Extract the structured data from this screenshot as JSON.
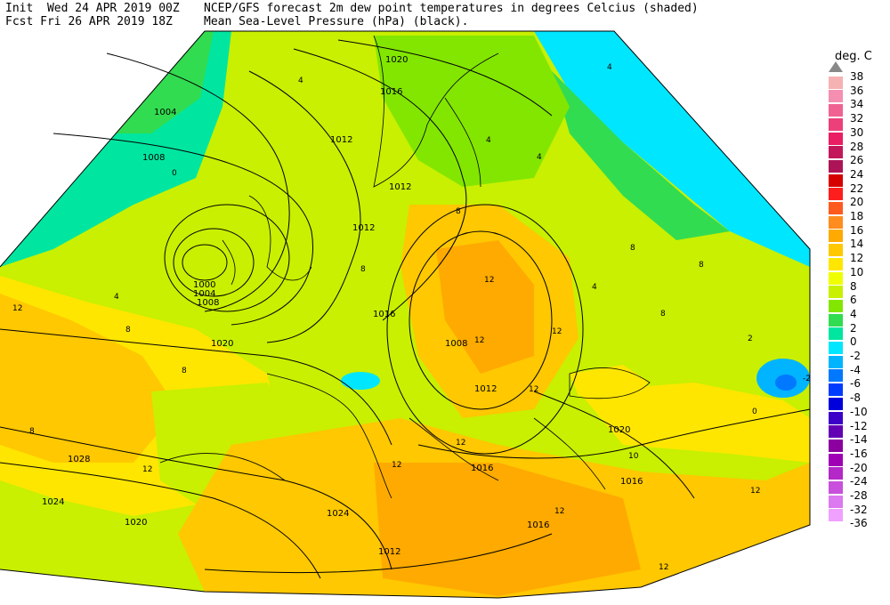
{
  "header": {
    "init_label": "Init",
    "init_time": "Wed 24 APR 2019 00Z",
    "fcst_label": "Fcst",
    "fcst_time": "Fri 26 APR 2019 18Z",
    "title_line1": "NCEP/GFS forecast 2m dew point temperatures in degrees Celcius (shaded)",
    "title_line2": "Mean Sea-Level Pressure (hPa) (black)."
  },
  "legend": {
    "unit": "deg. C",
    "entries": [
      {
        "label": "38",
        "color": "#ffffff"
      },
      {
        "label": "36",
        "color": "#f6b2b2"
      },
      {
        "label": "34",
        "color": "#f48fb1"
      },
      {
        "label": "32",
        "color": "#f06292"
      },
      {
        "label": "30",
        "color": "#ec407a"
      },
      {
        "label": "28",
        "color": "#e91e63"
      },
      {
        "label": "26",
        "color": "#c2185b"
      },
      {
        "label": "24",
        "color": "#ad1457"
      },
      {
        "label": "22",
        "color": "#d50000"
      },
      {
        "label": "20",
        "color": "#ff1e1e"
      },
      {
        "label": "18",
        "color": "#ff5a1e"
      },
      {
        "label": "16",
        "color": "#ff8c1e"
      },
      {
        "label": "14",
        "color": "#ffaa00"
      },
      {
        "label": "12",
        "color": "#ffc800"
      },
      {
        "label": "10",
        "color": "#ffe600"
      },
      {
        "label": "8",
        "color": "#f0ff00"
      },
      {
        "label": "6",
        "color": "#c8f000"
      },
      {
        "label": "4",
        "color": "#82e600"
      },
      {
        "label": "2",
        "color": "#32dc50"
      },
      {
        "label": "0",
        "color": "#00e6a0"
      },
      {
        "label": "-2",
        "color": "#00e6ff"
      },
      {
        "label": "-4",
        "color": "#00b4ff"
      },
      {
        "label": "-6",
        "color": "#0078ff"
      },
      {
        "label": "-8",
        "color": "#003cff"
      },
      {
        "label": "-10",
        "color": "#0000dc"
      },
      {
        "label": "-12",
        "color": "#3c00c8"
      },
      {
        "label": "-14",
        "color": "#6400b4"
      },
      {
        "label": "-16",
        "color": "#8c00a0"
      },
      {
        "label": "-20",
        "color": "#a000b4"
      },
      {
        "label": "-24",
        "color": "#b428c8"
      },
      {
        "label": "-28",
        "color": "#c850dc"
      },
      {
        "label": "-32",
        "color": "#dc78f0"
      },
      {
        "label": "-36",
        "color": "#f0a0ff"
      }
    ]
  },
  "isobar_labels": [
    "1004",
    "1008",
    "1000",
    "1004",
    "1008",
    "1012",
    "1012",
    "1012",
    "1016",
    "1016",
    "1020",
    "1020",
    "1008",
    "1012",
    "1016",
    "1016",
    "1020",
    "1024",
    "1024",
    "1028",
    "1020",
    "1016",
    "1012"
  ],
  "temp_labels": [
    "4",
    "0",
    "4",
    "12",
    "8",
    "8",
    "12",
    "4",
    "4",
    "8",
    "8",
    "2",
    "4",
    "12",
    "12",
    "12",
    "12",
    "8",
    "-2",
    "0",
    "12",
    "12",
    "8",
    "12",
    "12",
    "4",
    "8",
    "12",
    "10",
    "8"
  ]
}
